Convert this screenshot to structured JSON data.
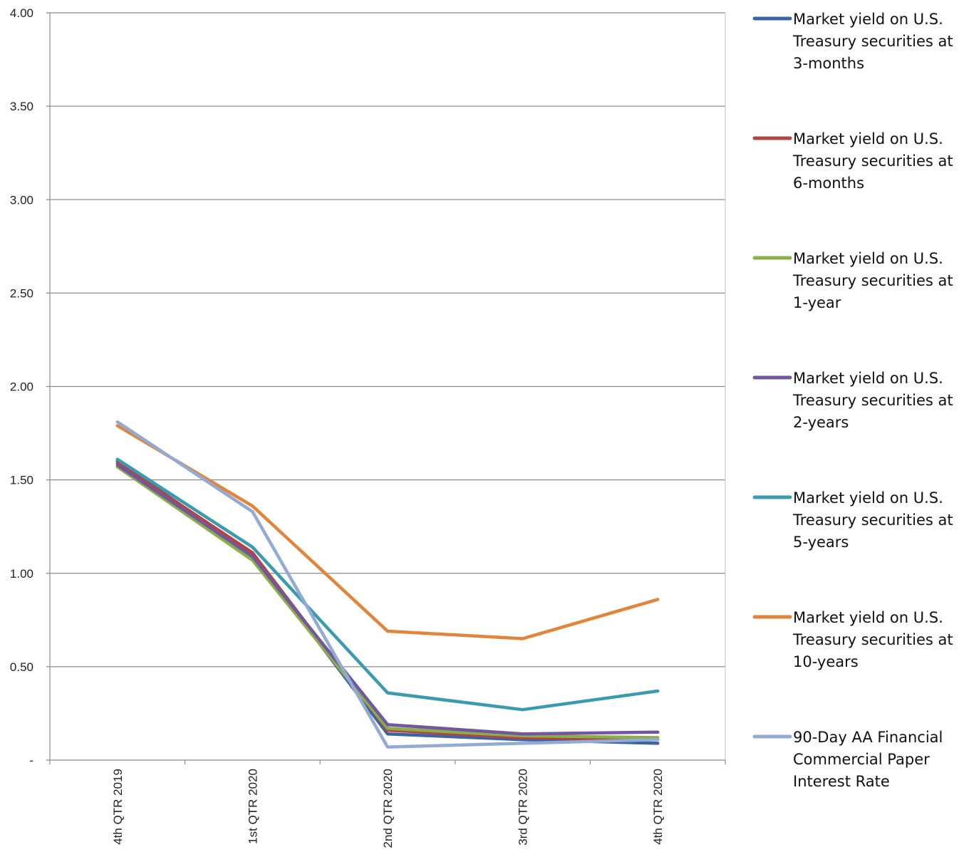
{
  "chart_data": {
    "type": "line",
    "title": "",
    "xlabel": "",
    "ylabel": "",
    "categories": [
      "4th QTR 2019",
      "1st QTR 2020",
      "2nd QTR 2020",
      "3rd QTR 2020",
      "4th QTR 2020"
    ],
    "ylim": [
      0,
      4
    ],
    "y_ticks": [
      {
        "value": 0,
        "label": "-"
      },
      {
        "value": 0.5,
        "label": "0.50"
      },
      {
        "value": 1.0,
        "label": "1.00"
      },
      {
        "value": 1.5,
        "label": "1.50"
      },
      {
        "value": 2.0,
        "label": "2.00"
      },
      {
        "value": 2.5,
        "label": "2.50"
      },
      {
        "value": 3.0,
        "label": "3.00"
      },
      {
        "value": 3.5,
        "label": "3.50"
      },
      {
        "value": 4.0,
        "label": "4.00"
      }
    ],
    "grid": true,
    "legend_position": "right",
    "series": [
      {
        "name": "Market yield on U.S. Treasury securities at 3-months",
        "legend_lines": [
          "Market yield on U.S.",
          "Treasury securities at",
          "3-months"
        ],
        "color": "#3b64a3",
        "values": [
          1.6,
          1.1,
          0.14,
          0.11,
          0.09
        ]
      },
      {
        "name": "Market yield on U.S. Treasury securities at 6-months",
        "legend_lines": [
          "Market yield on U.S.",
          "Treasury securities at",
          "6-months"
        ],
        "color": "#b7433f",
        "values": [
          1.59,
          1.11,
          0.16,
          0.12,
          0.11
        ]
      },
      {
        "name": "Market yield on U.S. Treasury securities at 1-year",
        "legend_lines": [
          "Market yield on U.S.",
          "Treasury securities at",
          "1-year"
        ],
        "color": "#8aaf48",
        "values": [
          1.57,
          1.07,
          0.17,
          0.13,
          0.12
        ]
      },
      {
        "name": "Market yield on U.S. Treasury securities at 2-years",
        "legend_lines": [
          "Market yield on U.S.",
          "Treasury securities at",
          "2-years"
        ],
        "color": "#7256a0",
        "values": [
          1.58,
          1.09,
          0.19,
          0.14,
          0.15
        ]
      },
      {
        "name": "Market yield on U.S. Treasury securities at 5-years",
        "legend_lines": [
          "Market yield on U.S.",
          "Treasury securities at",
          "5-years"
        ],
        "color": "#3a9bb0",
        "values": [
          1.61,
          1.14,
          0.36,
          0.27,
          0.37
        ]
      },
      {
        "name": "Market yield on U.S. Treasury securities at 10-years",
        "legend_lines": [
          "Market yield on U.S.",
          "Treasury securities at",
          "10-years"
        ],
        "color": "#e2853a",
        "values": [
          1.79,
          1.36,
          0.69,
          0.65,
          0.86
        ]
      },
      {
        "name": "90-Day AA Financial Commercial Paper Interest Rate",
        "legend_lines": [
          "90-Day AA Financial",
          "Commercial Paper",
          "Interest Rate"
        ],
        "color": "#93aad4",
        "values": [
          1.81,
          1.33,
          0.07,
          0.09,
          0.11
        ]
      }
    ]
  }
}
